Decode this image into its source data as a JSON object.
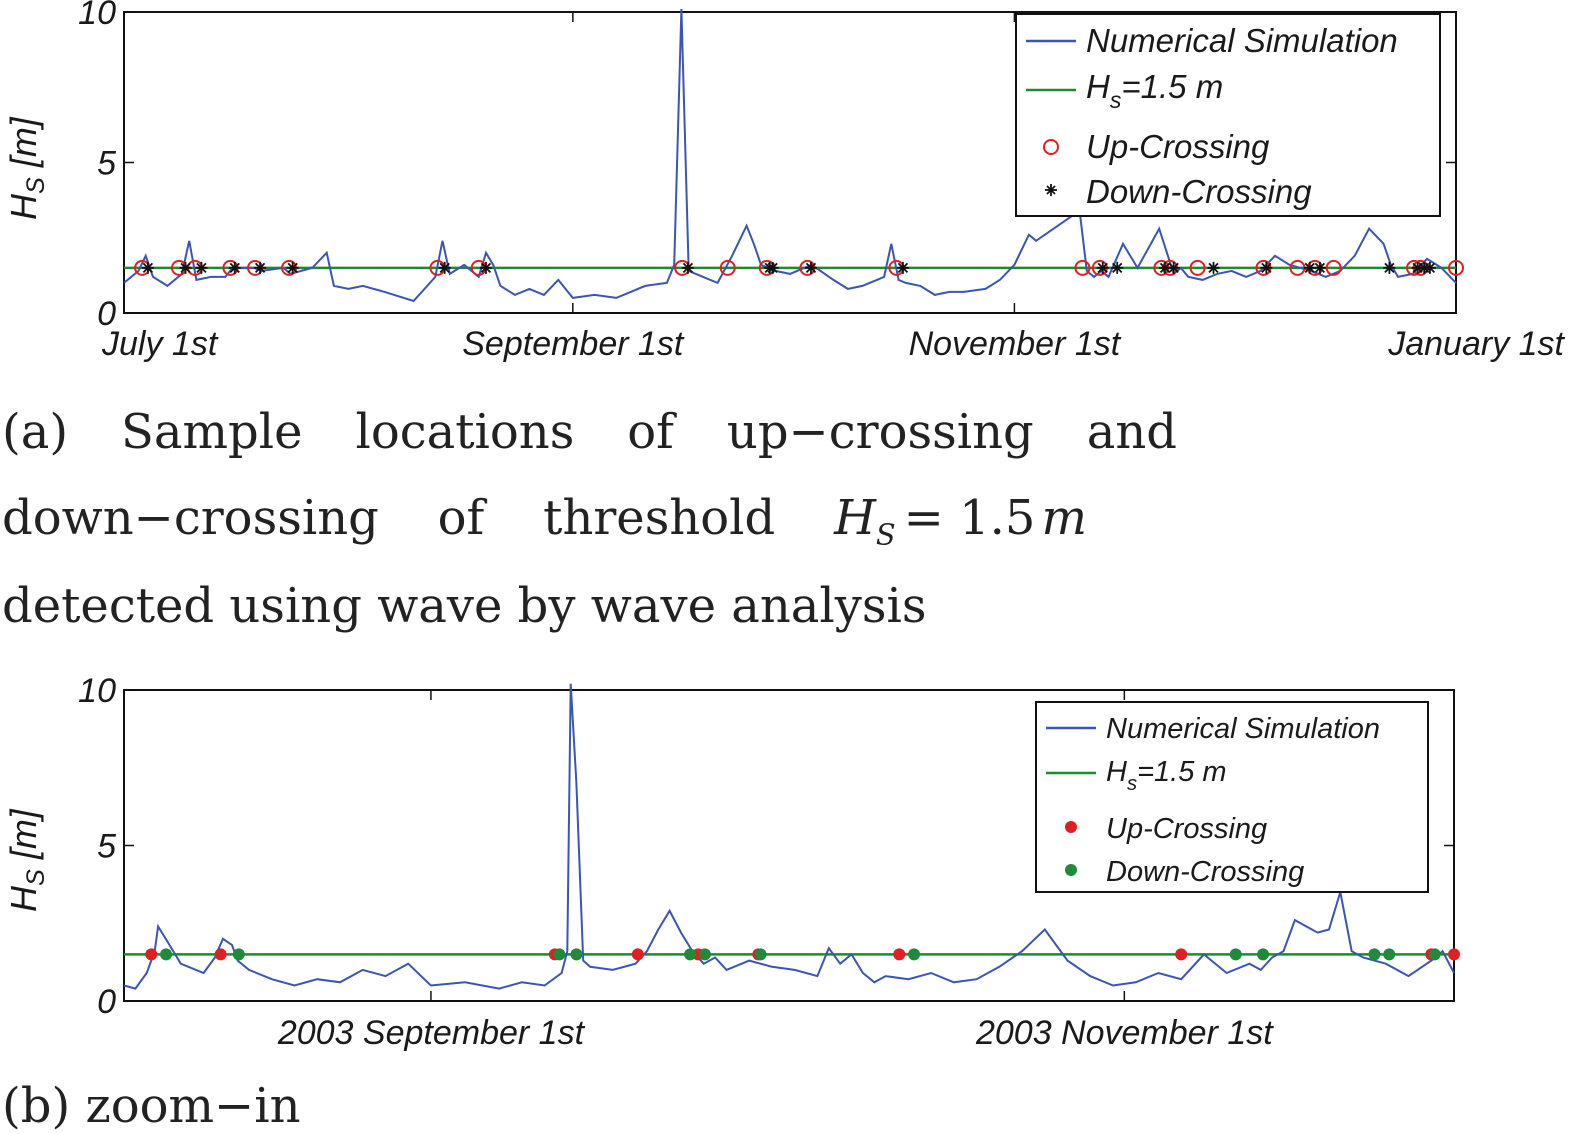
{
  "chart_data": [
    {
      "type": "line",
      "panel": "a",
      "ylabel_main": "H",
      "ylabel_sub": "S",
      "ylabel_unit": " [m]",
      "ylim": [
        0,
        10
      ],
      "yticks": [
        0,
        5,
        10
      ],
      "x_range_days": [
        0,
        184
      ],
      "xtick_labels": [
        {
          "label": "July 1st",
          "day": 0
        },
        {
          "label": "September 1st",
          "day": 62
        },
        {
          "label": "November 1st",
          "day": 123
        },
        {
          "label": "January 1st",
          "day": 184
        }
      ],
      "threshold": 1.5,
      "legend": {
        "sim": "Numerical Simulation",
        "thr_main": "H",
        "thr_sub": "s",
        "thr_rest": "=1.5 m",
        "up": "Up-Crossing",
        "down": "Down-Crossing"
      },
      "series": [
        {
          "name": "Numerical Simulation",
          "x": [
            0,
            2,
            3,
            4,
            6,
            8,
            9,
            10,
            12,
            14,
            15,
            18,
            19,
            22,
            23,
            26,
            28,
            29,
            31,
            33,
            36,
            40,
            43,
            44,
            45,
            47,
            49,
            50,
            51,
            52,
            54,
            56,
            58,
            60,
            62,
            65,
            68,
            70,
            72,
            75,
            76,
            77,
            78,
            80,
            82,
            84,
            86,
            87,
            88,
            90,
            92,
            95,
            98,
            100,
            102,
            105,
            106,
            107,
            108,
            110,
            112,
            114,
            116,
            119,
            121,
            123,
            125,
            126,
            132,
            133,
            134,
            135,
            136,
            138,
            140,
            143,
            145,
            146,
            147,
            149,
            151,
            153,
            155,
            157,
            159,
            161,
            164,
            166,
            168,
            170,
            172,
            174,
            175,
            176,
            178,
            180,
            182,
            184
          ],
          "values": [
            1.0,
            1.4,
            1.9,
            1.2,
            0.9,
            1.3,
            2.4,
            1.1,
            1.2,
            1.2,
            1.5,
            1.5,
            1.4,
            1.5,
            1.3,
            1.5,
            2.0,
            0.9,
            0.8,
            0.9,
            0.7,
            0.4,
            1.2,
            2.4,
            1.3,
            1.6,
            1.2,
            2.0,
            1.6,
            0.9,
            0.6,
            0.8,
            0.6,
            1.1,
            0.5,
            0.6,
            0.5,
            0.7,
            0.9,
            1.0,
            1.6,
            10.1,
            1.4,
            1.2,
            1.0,
            1.9,
            2.9,
            2.3,
            1.6,
            1.4,
            1.3,
            1.6,
            1.1,
            0.8,
            0.9,
            1.2,
            2.3,
            1.1,
            1.0,
            0.9,
            0.6,
            0.7,
            0.7,
            0.8,
            1.1,
            1.6,
            2.6,
            2.4,
            3.4,
            1.4,
            1.2,
            1.4,
            1.2,
            2.3,
            1.5,
            2.8,
            1.3,
            1.5,
            1.2,
            1.1,
            1.3,
            1.4,
            1.2,
            1.4,
            1.9,
            1.6,
            1.4,
            1.2,
            1.4,
            1.9,
            2.8,
            2.3,
            1.6,
            1.2,
            1.3,
            1.8,
            1.5,
            1.0
          ]
        },
        {
          "name": "Up-Crossing",
          "x": [
            2.5,
            7.6,
            9.8,
            14.7,
            18.1,
            22.8,
            43.3,
            49,
            77.1,
            83.4,
            88.8,
            94.4,
            106.7,
            132.4,
            134.8,
            143.3,
            144.5,
            148.3,
            157.4,
            162.1,
            164.5,
            167.1,
            178.2,
            179.1,
            184
          ],
          "values": [
            1.5,
            1.5,
            1.5,
            1.5,
            1.5,
            1.5,
            1.5,
            1.5,
            1.5,
            1.5,
            1.5,
            1.5,
            1.5,
            1.5,
            1.5,
            1.5,
            1.5,
            1.5,
            1.5,
            1.5,
            1.5,
            1.5,
            1.5,
            1.5,
            1.5
          ]
        },
        {
          "name": "Down-Crossing",
          "x": [
            3.3,
            8.5,
            10.7,
            15.3,
            18.8,
            23.3,
            44.3,
            50,
            77.9,
            89.2,
            89.6,
            94.9,
            107.6,
            135.2,
            137.2,
            143.8,
            145,
            150.5,
            157.8,
            163.8,
            165.2,
            174.8,
            178.7,
            179.6,
            180.4
          ],
          "values": [
            1.5,
            1.5,
            1.5,
            1.5,
            1.5,
            1.5,
            1.5,
            1.5,
            1.5,
            1.5,
            1.5,
            1.5,
            1.5,
            1.5,
            1.5,
            1.5,
            1.5,
            1.5,
            1.5,
            1.5,
            1.5,
            1.5,
            1.5,
            1.5,
            1.5
          ]
        },
        {
          "name": "H_s=1.5 m",
          "values": [
            1.5
          ]
        }
      ]
    },
    {
      "type": "line",
      "panel": "b",
      "ylabel_main": "H",
      "ylabel_sub": "S",
      "ylabel_unit": " [m]",
      "ylim": [
        0,
        10
      ],
      "yticks": [
        0,
        5,
        10
      ],
      "x_range_days": [
        35,
        152
      ],
      "xtick_labels": [
        {
          "label": "2003 September 1st",
          "day": 62
        },
        {
          "label": "2003 November 1st",
          "day": 123
        }
      ],
      "threshold": 1.5,
      "legend": {
        "sim": "Numerical Simulation",
        "thr_main": "H",
        "thr_sub": "s",
        "thr_rest": "=1.5 m",
        "up": "Up-Crossing",
        "down": "Down-Crossing"
      },
      "series": [
        {
          "name": "Numerical Simulation",
          "x": [
            35,
            36,
            37,
            37.7,
            38,
            39,
            40,
            42,
            43,
            43.7,
            44.5,
            45,
            46,
            48,
            50,
            52,
            54,
            56,
            58,
            60,
            62,
            65,
            68,
            70,
            72,
            73.5,
            74,
            74.3,
            74.8,
            75.4,
            76,
            78,
            80,
            81,
            82,
            83,
            84,
            85,
            86,
            87,
            88,
            90,
            92,
            94,
            96,
            97,
            98,
            99,
            100,
            101,
            102,
            104,
            106,
            108,
            110,
            112,
            114,
            116,
            118,
            120,
            122,
            124,
            126,
            128,
            130,
            132,
            134,
            135,
            136,
            137,
            138,
            139,
            140,
            141,
            142,
            143,
            144,
            146,
            148,
            150,
            151,
            152
          ],
          "values": [
            0.5,
            0.4,
            0.9,
            1.6,
            2.4,
            1.8,
            1.2,
            0.9,
            1.4,
            2.0,
            1.8,
            1.3,
            1.0,
            0.7,
            0.5,
            0.7,
            0.6,
            1.0,
            0.8,
            1.2,
            0.5,
            0.6,
            0.4,
            0.6,
            0.5,
            0.9,
            1.6,
            10.2,
            7.0,
            1.3,
            1.1,
            1.0,
            1.2,
            1.6,
            2.3,
            2.9,
            2.2,
            1.6,
            1.2,
            1.4,
            1.0,
            1.3,
            1.1,
            1.0,
            0.8,
            1.7,
            1.2,
            1.5,
            0.9,
            0.6,
            0.8,
            0.7,
            0.9,
            0.6,
            0.7,
            1.1,
            1.6,
            2.3,
            1.3,
            0.8,
            0.5,
            0.6,
            0.9,
            0.7,
            1.5,
            0.9,
            1.2,
            1.0,
            1.4,
            1.6,
            2.6,
            2.4,
            2.2,
            2.3,
            3.5,
            1.6,
            1.4,
            1.2,
            0.8,
            1.3,
            1.6,
            0.9
          ]
        },
        {
          "name": "Up-Crossing",
          "x": [
            37.4,
            43.5,
            72.9,
            80.2,
            85.5,
            90.8,
            103.2,
            128,
            150,
            152
          ],
          "values": [
            1.5,
            1.5,
            1.5,
            1.5,
            1.5,
            1.5,
            1.5,
            1.5,
            1.5,
            1.5
          ]
        },
        {
          "name": "Down-Crossing",
          "x": [
            38.7,
            45.1,
            73.3,
            74.8,
            84.8,
            86.1,
            91,
            104.5,
            132.8,
            135.2,
            145,
            146.3,
            150.3
          ],
          "values": [
            1.5,
            1.5,
            1.5,
            1.5,
            1.5,
            1.5,
            1.5,
            1.5,
            1.5,
            1.5,
            1.5,
            1.5,
            1.5
          ]
        },
        {
          "name": "H_s=1.5 m",
          "values": [
            1.5
          ]
        }
      ]
    }
  ],
  "captions": {
    "a_words": [
      "(a)",
      "Sample",
      "locations",
      "of",
      "up−crossing",
      "and"
    ],
    "a_line2_words": [
      "down−crossing",
      "of",
      "threshold"
    ],
    "a_line2_math_main": "H",
    "a_line2_math_sub": "S",
    "a_line2_math_rest": "= 1.5",
    "a_line2_math_unit": "m",
    "a_line3": "detected using wave by wave analysis",
    "b_line": "(b) zoom−in"
  },
  "colors": {
    "simulation": "#3a55b4",
    "threshold": "#1e8a2e",
    "up_a": "#e02020",
    "down_a": "#111111",
    "up_b": "#e02020",
    "down_b": "#1e8a3a"
  }
}
